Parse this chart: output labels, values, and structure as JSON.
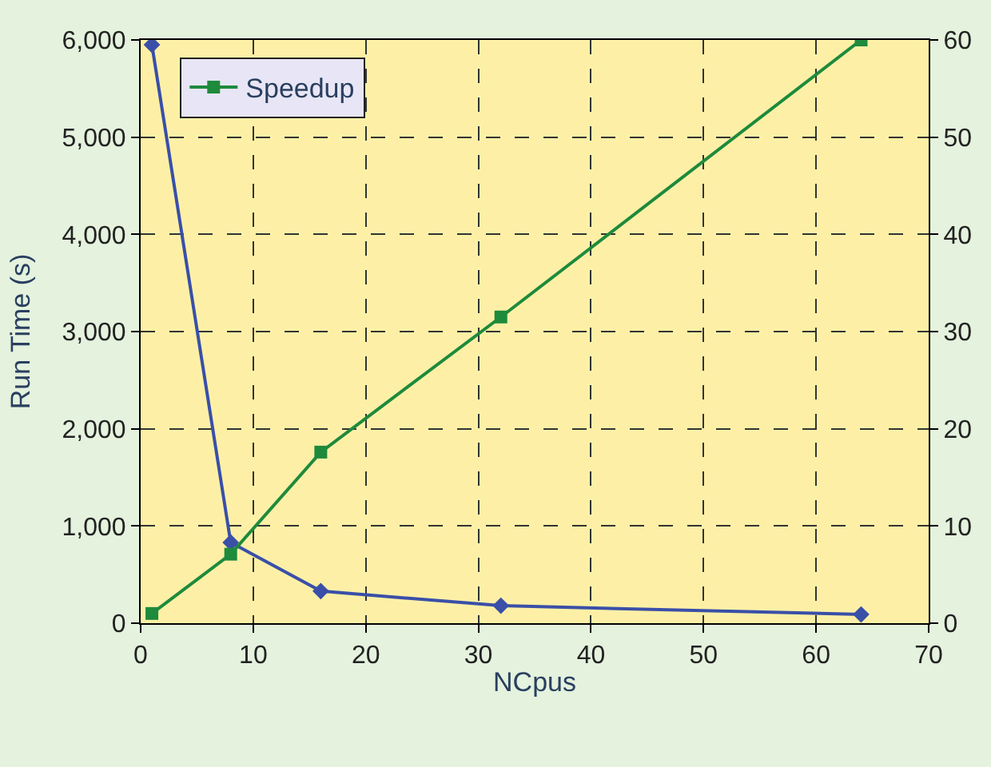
{
  "chart_data": {
    "type": "line",
    "xlabel": "NCpus",
    "ylabel": "Run Time (s)",
    "x": [
      1,
      8,
      16,
      32,
      64
    ],
    "series": [
      {
        "color": "#3a4fa8",
        "marker": "diamond",
        "values": [
          5950,
          830,
          330,
          180,
          90
        ]
      },
      {
        "name": "Speedup",
        "color": "#1e8a3c",
        "marker": "square",
        "axis": "y2",
        "values": [
          1,
          7.1,
          17.6,
          31.5,
          60
        ]
      }
    ],
    "xlim": [
      0,
      70
    ],
    "xticks": [
      0,
      10,
      20,
      30,
      40,
      50,
      60,
      70
    ],
    "ylim": [
      0,
      6000
    ],
    "yticks": [
      0,
      {
        "value": 1000,
        "label": "1,000"
      },
      {
        "value": 2000,
        "label": "2,000"
      },
      {
        "value": 3000,
        "label": "3,000"
      },
      {
        "value": 4000,
        "label": "4,000"
      },
      {
        "value": 5000,
        "label": "5,000"
      },
      {
        "value": 6000,
        "label": "6,000"
      }
    ],
    "y2lim": [
      0,
      60
    ],
    "y2ticks": [
      0,
      10,
      20,
      30,
      40,
      50,
      60
    ],
    "grid": true,
    "legend": "top left",
    "line_style": "solid"
  }
}
